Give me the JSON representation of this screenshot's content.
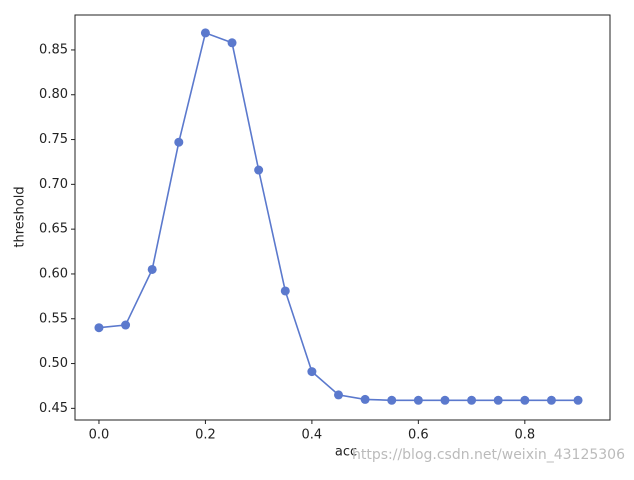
{
  "chart_data": {
    "type": "line",
    "x_label": "acc",
    "y_label": "threshold",
    "x": [
      0.0,
      0.05,
      0.1,
      0.15,
      0.2,
      0.25,
      0.3,
      0.35,
      0.4,
      0.45,
      0.5,
      0.55,
      0.6,
      0.65,
      0.7,
      0.75,
      0.8,
      0.85,
      0.9
    ],
    "series": [
      {
        "color": "#5b79cd",
        "values": [
          0.54,
          0.543,
          0.605,
          0.747,
          0.869,
          0.858,
          0.716,
          0.581,
          0.491,
          0.465,
          0.46,
          0.459,
          0.459,
          0.459,
          0.459,
          0.459,
          0.459,
          0.459,
          0.459
        ]
      }
    ],
    "xlim": [
      -0.045,
      0.96
    ],
    "ylim": [
      0.437,
      0.889
    ],
    "xticks": [
      {
        "value": 0,
        "label": "0.0"
      },
      0.2,
      0.4,
      0.6,
      0.8
    ],
    "yticks": [
      0.45,
      {
        "value": 0.5,
        "label": "0.50"
      },
      0.55,
      {
        "value": 0.6,
        "label": "0.60"
      },
      0.65,
      {
        "value": 0.7,
        "label": "0.70"
      },
      0.75,
      {
        "value": 0.8,
        "label": "0.80"
      },
      0.85
    ],
    "annotation": "https://blog.csdn.net/weixin_43125306"
  }
}
